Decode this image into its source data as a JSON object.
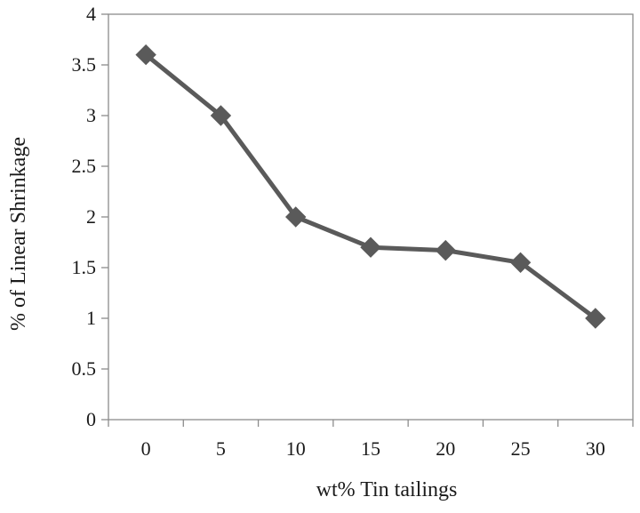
{
  "chart_data": {
    "type": "line",
    "title": "",
    "xlabel": "wt% Tin tailings",
    "ylabel": "% of Linear Shrinkage",
    "categories": [
      "0",
      "5",
      "10",
      "15",
      "20",
      "25",
      "30"
    ],
    "series": [
      {
        "values": [
          3.6,
          3.0,
          2.0,
          1.7,
          1.67,
          1.55,
          1.0
        ],
        "marker": "diamond",
        "color": "#5a5a5a"
      }
    ],
    "yticks": [
      "0",
      "0.5",
      "1",
      "1.5",
      "2",
      "2.5",
      "3",
      "3.5",
      "4"
    ],
    "ylim": [
      0,
      4
    ],
    "grid": false,
    "legend": "none"
  }
}
